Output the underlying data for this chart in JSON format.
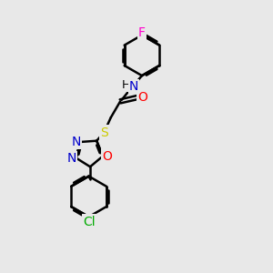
{
  "bg_color": "#e8e8e8",
  "bond_color": "#000000",
  "bond_width": 1.8,
  "atom_colors": {
    "N": "#0000cc",
    "O": "#ff0000",
    "S": "#cccc00",
    "F": "#ff00cc",
    "Cl": "#00aa00"
  },
  "font_size": 10,
  "figsize": [
    3.0,
    3.0
  ],
  "dpi": 100
}
